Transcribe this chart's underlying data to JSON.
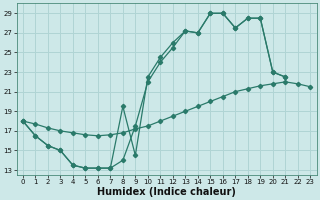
{
  "xlabel": "Humidex (Indice chaleur)",
  "bg_color": "#cde8e8",
  "grid_color": "#b0d4d4",
  "line_color": "#2a7a6a",
  "xlim": [
    -0.5,
    23.5
  ],
  "ylim": [
    12.5,
    30.0
  ],
  "xticks": [
    0,
    1,
    2,
    3,
    4,
    5,
    6,
    7,
    8,
    9,
    10,
    11,
    12,
    13,
    14,
    15,
    16,
    17,
    18,
    19,
    20,
    21,
    22,
    23
  ],
  "yticks": [
    13,
    15,
    17,
    19,
    21,
    23,
    25,
    27,
    29
  ],
  "line1_x": [
    0,
    1,
    2,
    3,
    4,
    5,
    6,
    7,
    8,
    9,
    10,
    11,
    12,
    13,
    14,
    15,
    16,
    17,
    18,
    19,
    20,
    21
  ],
  "line1_y": [
    18.0,
    16.5,
    15.5,
    15.0,
    13.5,
    13.2,
    13.2,
    13.2,
    19.5,
    14.5,
    22.5,
    24.5,
    26.0,
    27.2,
    27.0,
    29.0,
    29.0,
    27.5,
    28.5,
    28.5,
    23.0,
    22.5
  ],
  "line2_x": [
    0,
    1,
    2,
    3,
    4,
    5,
    6,
    7,
    8,
    9,
    10,
    11,
    12,
    13,
    14,
    15,
    16,
    17,
    18,
    19,
    20,
    21
  ],
  "line2_y": [
    18.0,
    16.5,
    15.5,
    15.0,
    13.5,
    13.2,
    13.2,
    13.2,
    14.0,
    17.5,
    22.0,
    24.0,
    25.5,
    27.2,
    27.0,
    29.0,
    29.0,
    27.5,
    28.5,
    28.5,
    23.0,
    22.5
  ],
  "line3_x": [
    0,
    1,
    2,
    3,
    4,
    5,
    6,
    7,
    8,
    9,
    10,
    11,
    12,
    13,
    14,
    15,
    16,
    17,
    18,
    19,
    20,
    21,
    22,
    23
  ],
  "line3_y": [
    18.0,
    17.7,
    17.3,
    17.0,
    16.8,
    16.6,
    16.5,
    16.6,
    16.8,
    17.2,
    17.5,
    18.0,
    18.5,
    19.0,
    19.5,
    20.0,
    20.5,
    21.0,
    21.3,
    21.6,
    21.8,
    22.0,
    21.8,
    21.5
  ],
  "xlabel_fontsize": 7,
  "tick_fontsize": 5
}
